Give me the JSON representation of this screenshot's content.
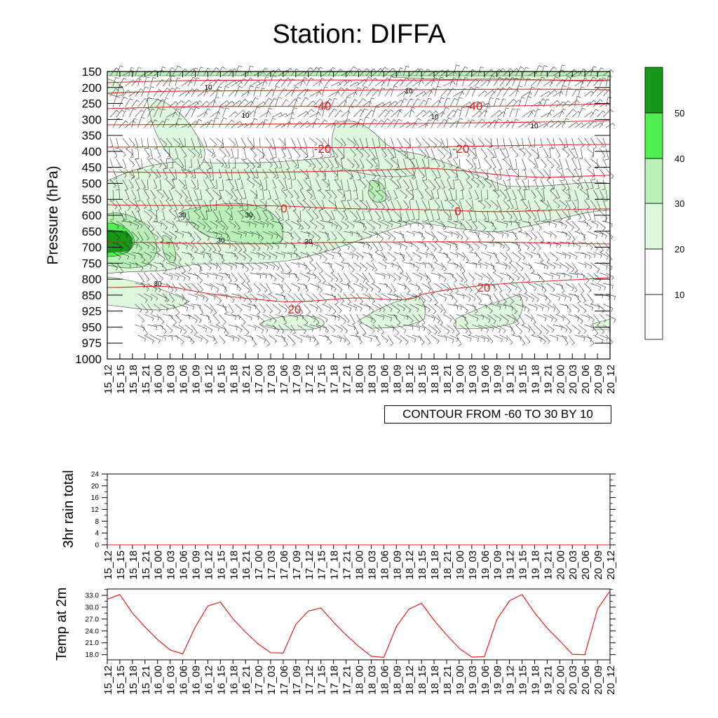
{
  "title": "Station: DIFFA",
  "contour_note": "CONTOUR FROM -60 TO 30 BY 10",
  "colors": {
    "temp_line": "#e0201e",
    "shade_1": "#ddf8dd",
    "shade_2": "#b8f0b8",
    "shade_3": "#50f050",
    "shade_4": "#189818"
  },
  "chart_data": [
    {
      "type": "heatmap",
      "title": "Station: DIFFA",
      "ylabel": "Pressure (hPa)",
      "xlabel": "",
      "y_ticks": [
        150,
        200,
        250,
        300,
        350,
        400,
        450,
        500,
        550,
        600,
        650,
        700,
        750,
        800,
        850,
        925,
        950,
        975,
        1000
      ],
      "x_ticks": [
        "15_12",
        "15_15",
        "15_18",
        "15_21",
        "16_00",
        "16_03",
        "16_06",
        "16_09",
        "16_12",
        "16_15",
        "16_18",
        "16_21",
        "17_00",
        "17_03",
        "17_06",
        "17_09",
        "17_12",
        "17_15",
        "17_18",
        "17_21",
        "18_00",
        "18_03",
        "18_06",
        "18_09",
        "18_12",
        "18_15",
        "18_18",
        "18_21",
        "19_00",
        "19_03",
        "19_06",
        "19_09",
        "19_12",
        "19_15",
        "19_18",
        "19_21",
        "20_00",
        "20_03",
        "20_06",
        "20_09",
        "20_12"
      ],
      "colorbar_labels": [
        "10",
        "20",
        "30",
        "40",
        "50"
      ],
      "temperature_contour_labels": [
        "-40",
        "-40",
        "-20",
        "-20",
        "0",
        "0",
        "20",
        "20"
      ],
      "humidity_contour_labels": [
        "10",
        "10",
        "10",
        "10",
        "10",
        "30",
        "30",
        "30",
        "30",
        "30"
      ],
      "contour_range": {
        "from": -60,
        "to": 30,
        "by": 10
      }
    },
    {
      "type": "line",
      "ylabel": "3hr rain total",
      "ylim": [
        0,
        24
      ],
      "y_ticks": [
        "0",
        "4",
        "8",
        "12",
        "16",
        "20",
        "24"
      ],
      "x_ticks": [
        "15_12",
        "15_15",
        "15_18",
        "15_21",
        "16_00",
        "16_03",
        "16_06",
        "16_09",
        "16_12",
        "16_15",
        "16_18",
        "16_21",
        "17_00",
        "17_03",
        "17_06",
        "17_09",
        "17_12",
        "17_15",
        "17_18",
        "17_21",
        "18_00",
        "18_03",
        "18_06",
        "18_09",
        "18_12",
        "18_15",
        "18_18",
        "18_21",
        "19_00",
        "19_03",
        "19_06",
        "19_09",
        "19_12",
        "19_15",
        "19_18",
        "19_21",
        "20_00",
        "20_03",
        "20_06",
        "20_09",
        "20_12"
      ],
      "values": [
        0,
        0,
        0,
        0,
        0,
        0,
        0,
        0,
        0,
        0,
        0,
        0,
        0,
        0,
        0,
        0,
        0,
        0,
        0,
        0,
        0,
        0,
        0,
        0,
        0,
        0,
        0,
        0,
        0,
        0,
        0,
        0,
        0,
        0,
        0,
        0,
        0,
        0,
        0,
        0,
        0
      ]
    },
    {
      "type": "line",
      "ylabel": "Temp at 2m",
      "ylim": [
        16.7,
        34.6
      ],
      "y_ticks": [
        "18.0",
        "21.0",
        "24.0",
        "27.0",
        "30.0",
        "33.0"
      ],
      "x_ticks": [
        "15_12",
        "15_15",
        "15_18",
        "15_21",
        "16_00",
        "16_03",
        "16_06",
        "16_09",
        "16_12",
        "16_15",
        "16_18",
        "16_21",
        "17_00",
        "17_03",
        "17_06",
        "17_09",
        "17_12",
        "17_15",
        "17_18",
        "17_21",
        "18_00",
        "18_03",
        "18_06",
        "18_09",
        "18_12",
        "18_15",
        "18_18",
        "18_21",
        "19_00",
        "19_03",
        "19_06",
        "19_09",
        "19_12",
        "19_15",
        "19_18",
        "19_21",
        "20_00",
        "20_03",
        "20_06",
        "20_09",
        "20_12"
      ],
      "values": [
        32.0,
        33.2,
        28.5,
        25.0,
        21.8,
        19.2,
        18.2,
        25.0,
        30.3,
        31.3,
        27.0,
        23.7,
        20.7,
        18.5,
        18.4,
        25.7,
        29.0,
        29.8,
        26.2,
        23.0,
        20.1,
        17.6,
        17.3,
        25.1,
        29.5,
        31.0,
        26.7,
        23.0,
        19.6,
        17.4,
        17.5,
        26.9,
        31.6,
        33.2,
        28.6,
        24.7,
        21.5,
        18.1,
        18.0,
        29.5,
        34.1
      ]
    }
  ]
}
